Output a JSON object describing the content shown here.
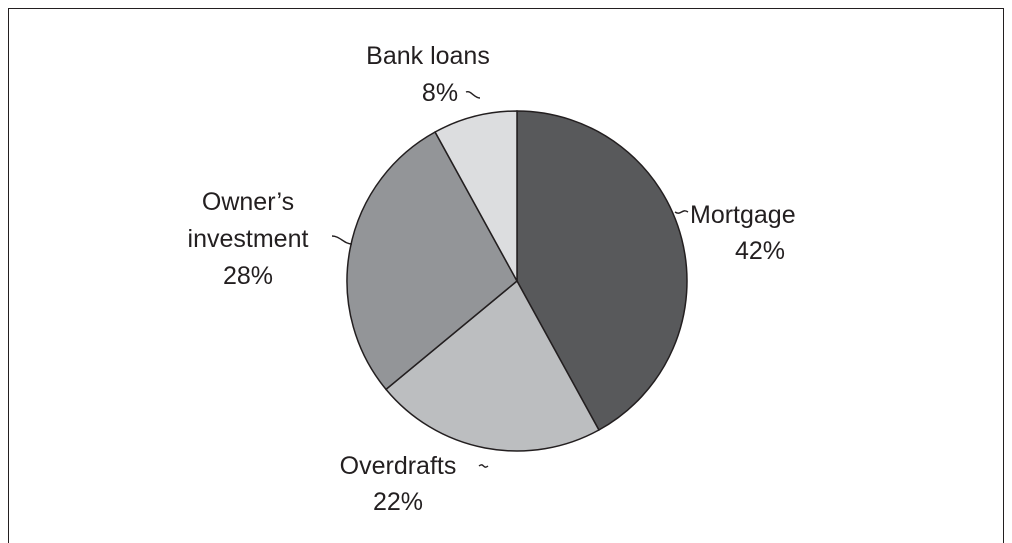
{
  "chart_data": {
    "type": "pie",
    "title": "",
    "start_angle_deg": 0,
    "direction": "clockwise",
    "slices": [
      {
        "label_lines": [
          "Mortgage"
        ],
        "value": 42,
        "value_text": "42%",
        "color": "#58595b"
      },
      {
        "label_lines": [
          "Overdrafts"
        ],
        "value": 22,
        "value_text": "22%",
        "color": "#bcbec0"
      },
      {
        "label_lines": [
          "Owner’s",
          "investment"
        ],
        "value": 28,
        "value_text": "28%",
        "color": "#939598"
      },
      {
        "label_lines": [
          "Bank loans"
        ],
        "value": 8,
        "value_text": "8%",
        "color": "#dcdddf"
      }
    ]
  }
}
